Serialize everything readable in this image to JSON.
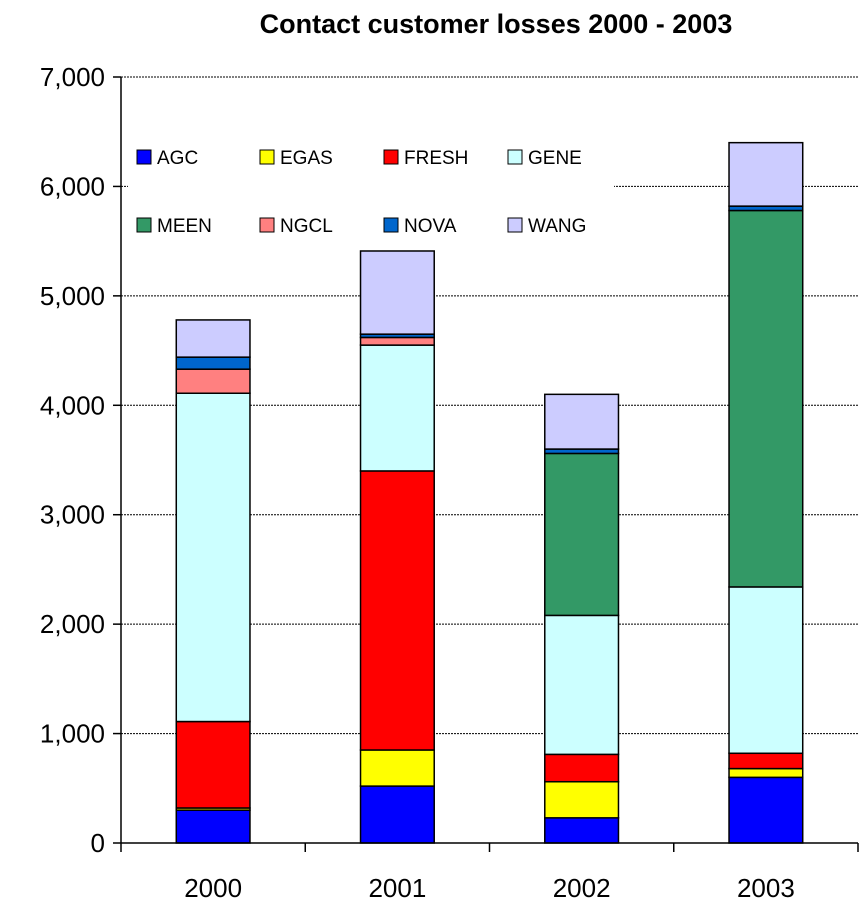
{
  "chart_data": {
    "type": "bar",
    "stacked": true,
    "title": "Contact customer losses 2000 - 2003",
    "xlabel": "",
    "ylabel": "",
    "categories": [
      "2000",
      "2001",
      "2002",
      "2003"
    ],
    "ylim": [
      0,
      7000
    ],
    "yticks": [
      "0",
      "1,000",
      "2,000",
      "3,000",
      "4,000",
      "5,000",
      "6,000",
      "7,000"
    ],
    "grid": true,
    "legend_position": "top-left",
    "series": [
      {
        "name": "AGC",
        "color": "#0000ff",
        "values": [
          300,
          520,
          230,
          600
        ]
      },
      {
        "name": "EGAS",
        "color": "#ffff00",
        "values": [
          20,
          330,
          330,
          80
        ]
      },
      {
        "name": "FRESH",
        "color": "#ff0000",
        "values": [
          790,
          2550,
          250,
          140
        ]
      },
      {
        "name": "GENE",
        "color": "#ccffff",
        "values": [
          3000,
          1150,
          1270,
          1520
        ]
      },
      {
        "name": "MEEN",
        "color": "#339966",
        "values": [
          0,
          0,
          1480,
          3440
        ]
      },
      {
        "name": "NGCL",
        "color": "#ff8080",
        "values": [
          220,
          70,
          0,
          0
        ]
      },
      {
        "name": "NOVA",
        "color": "#0066cc",
        "values": [
          110,
          30,
          40,
          40
        ]
      },
      {
        "name": "WANG",
        "color": "#ccccff",
        "values": [
          340,
          760,
          500,
          580
        ]
      }
    ]
  }
}
